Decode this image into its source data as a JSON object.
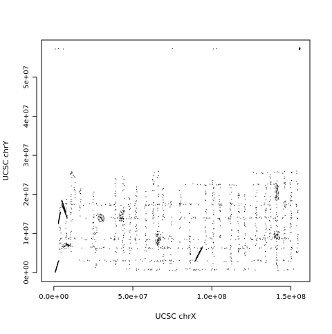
{
  "chart_data": {
    "type": "scatter",
    "xlabel": "UCSC chrX",
    "ylabel": "UCSC chrY",
    "xlim": [
      -7800000,
      162000000
    ],
    "ylim": [
      -2300000,
      59500000
    ],
    "x_ticks": [
      0,
      50000000,
      100000000,
      150000000
    ],
    "x_tick_labels": [
      "0.0e+00",
      "5.0e+07",
      "1.0e+08",
      "1.5e+08"
    ],
    "y_ticks": [
      0,
      10000000,
      20000000,
      30000000,
      40000000,
      50000000
    ],
    "y_tick_labels": [
      "0e+00",
      "1e+07",
      "2e+07",
      "3e+07",
      "4e+07",
      "5e+07"
    ],
    "grid": false,
    "point_color": "#000000",
    "segments": [
      {
        "x": [
          900000,
          3000000
        ],
        "y": [
          200000,
          3000000
        ]
      },
      {
        "x": [
          5000000,
          8500000
        ],
        "y": [
          17500000,
          14000000
        ]
      },
      {
        "x": [
          5000000,
          7500000
        ],
        "y": [
          18500000,
          15500000
        ]
      },
      {
        "x": [
          2800000,
          4200000
        ],
        "y": [
          12500000,
          15500000
        ]
      },
      {
        "x": [
          90000000,
          94000000
        ],
        "y": [
          3500000,
          6500000
        ]
      },
      {
        "x": [
          89500000,
          93000000
        ],
        "y": [
          3000000,
          5800000
        ]
      }
    ],
    "x_tracks": [
      {
        "x": 4000000,
        "y": [
          5000000,
          20000000
        ]
      },
      {
        "x": 8000000,
        "y": [
          6000000,
          19000000
        ]
      },
      {
        "x": 11000000,
        "y": [
          5000000,
          26000000
        ]
      },
      {
        "x": 13000000,
        "y": [
          18000000,
          26000000
        ]
      },
      {
        "x": 16500000,
        "y": [
          14000000,
          22000000
        ]
      },
      {
        "x": 25000000,
        "y": [
          6000000,
          21000000
        ]
      },
      {
        "x": 27000000,
        "y": [
          1000000,
          15000000
        ]
      },
      {
        "x": 39000000,
        "y": [
          2000000,
          25000000
        ]
      },
      {
        "x": 44000000,
        "y": [
          5000000,
          25000000
        ]
      },
      {
        "x": 48000000,
        "y": [
          1000000,
          20000000
        ]
      },
      {
        "x": 52000000,
        "y": [
          7000000,
          23000000
        ]
      },
      {
        "x": 58000000,
        "y": [
          3000000,
          21000000
        ]
      },
      {
        "x": 63000000,
        "y": [
          9000000,
          26000000
        ]
      },
      {
        "x": 66000000,
        "y": [
          5000000,
          26000000
        ]
      },
      {
        "x": 69000000,
        "y": [
          1000000,
          23000000
        ]
      },
      {
        "x": 74000000,
        "y": [
          2000000,
          20000000
        ]
      },
      {
        "x": 80000000,
        "y": [
          6000000,
          21000000
        ]
      },
      {
        "x": 86000000,
        "y": [
          1000000,
          18000000
        ]
      },
      {
        "x": 96000000,
        "y": [
          5000000,
          21000000
        ]
      },
      {
        "x": 101000000,
        "y": [
          1000000,
          26000000
        ]
      },
      {
        "x": 105000000,
        "y": [
          8000000,
          22000000
        ]
      },
      {
        "x": 112000000,
        "y": [
          2000000,
          22000000
        ]
      },
      {
        "x": 117000000,
        "y": [
          5000000,
          22000000
        ]
      },
      {
        "x": 121000000,
        "y": [
          1000000,
          20000000
        ]
      },
      {
        "x": 128000000,
        "y": [
          5000000,
          22000000
        ]
      },
      {
        "x": 134000000,
        "y": [
          2000000,
          24000000
        ]
      },
      {
        "x": 137000000,
        "y": [
          6000000,
          25000000
        ]
      },
      {
        "x": 141000000,
        "y": [
          1000000,
          26000000
        ]
      },
      {
        "x": 146000000,
        "y": [
          5000000,
          26000000
        ]
      },
      {
        "x": 150000000,
        "y": [
          1000000,
          24000000
        ]
      },
      {
        "x": 154000000,
        "y": [
          5000000,
          26000000
        ]
      }
    ],
    "y_tracks": [
      {
        "y": 6300000,
        "x": [
          5000000,
          155000000
        ]
      },
      {
        "y": 8600000,
        "x": [
          5000000,
          155000000
        ]
      },
      {
        "y": 14000000,
        "x": [
          20000000,
          155000000
        ]
      },
      {
        "y": 17400000,
        "x": [
          10000000,
          155000000
        ]
      },
      {
        "y": 22500000,
        "x": [
          80000000,
          142000000
        ]
      },
      {
        "y": 3000000,
        "x": [
          15000000,
          150000000
        ]
      },
      {
        "y": 700000,
        "x": [
          45000000,
          152000000
        ]
      },
      {
        "y": 25500000,
        "x": [
          120000000,
          155000000
        ]
      }
    ],
    "clusters": [
      {
        "x": 8000000,
        "y": 7000000,
        "dx": 3000000,
        "dy": 400000
      },
      {
        "x": 141000000,
        "y": 9500000,
        "dx": 2000000,
        "dy": 1000000
      },
      {
        "x": 141000000,
        "y": 20500000,
        "dx": 1200000,
        "dy": 2000000
      },
      {
        "x": 155500000,
        "y": 57300000,
        "dx": 300000,
        "dy": 200000
      },
      {
        "x": 43000000,
        "y": 14500000,
        "dx": 1500000,
        "dy": 1500000
      },
      {
        "x": 66000000,
        "y": 8500000,
        "dx": 1500000,
        "dy": 1500000
      },
      {
        "x": 30000000,
        "y": 14000000,
        "dx": 2000000,
        "dy": 1000000
      }
    ],
    "sparse_points": [
      {
        "x": 1000000,
        "y": 57200000
      },
      {
        "x": 3000000,
        "y": 57300000
      },
      {
        "x": 6000000,
        "y": 57200000
      },
      {
        "x": 75000000,
        "y": 57300000
      },
      {
        "x": 101000000,
        "y": 57200000
      },
      {
        "x": 103000000,
        "y": 57300000
      }
    ]
  }
}
